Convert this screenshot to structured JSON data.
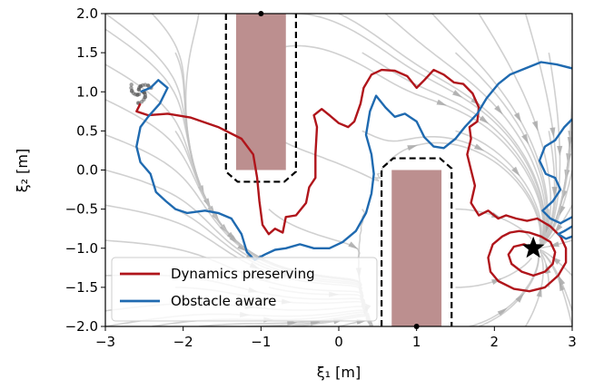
{
  "chart_data": {
    "type": "line",
    "xlabel": "ξ₁ [m]",
    "ylabel": "ξ₂ [m]",
    "xlim": [
      -3,
      3
    ],
    "ylim": [
      -2,
      2
    ],
    "xticks": [
      -3,
      -2,
      -1,
      0,
      1,
      2,
      3
    ],
    "xtick_labels": [
      "−3",
      "−2",
      "−1",
      "0",
      "1",
      "2",
      "3"
    ],
    "yticks": [
      -2.0,
      -1.5,
      -1.0,
      -0.5,
      0.0,
      0.5,
      1.0,
      1.5,
      2.0
    ],
    "ytick_labels": [
      "−2.0",
      "−1.5",
      "−1.0",
      "−0.5",
      "0.0",
      "0.5",
      "1.0",
      "1.5",
      "2.0"
    ],
    "grid": false,
    "legend_position": "lower-left",
    "obstacles": [
      {
        "x": [
          -1.32,
          -0.68
        ],
        "y": [
          0.0,
          2.0
        ],
        "color": "#bc8f8f"
      },
      {
        "x": [
          0.68,
          1.32
        ],
        "y": [
          -2.0,
          0.0
        ],
        "color": "#bc8f8f"
      }
    ],
    "safety_margins": [
      {
        "points": [
          [
            -1.45,
            2.0
          ],
          [
            -1.45,
            -0.02
          ],
          [
            -1.3,
            -0.15
          ],
          [
            -0.7,
            -0.15
          ],
          [
            -0.55,
            -0.02
          ],
          [
            -0.55,
            2.0
          ]
        ]
      },
      {
        "points": [
          [
            0.55,
            -2.0
          ],
          [
            0.55,
            0.02
          ],
          [
            0.7,
            0.15
          ],
          [
            1.3,
            0.15
          ],
          [
            1.45,
            0.02
          ],
          [
            1.45,
            -2.0
          ]
        ]
      }
    ],
    "attractor": {
      "x": 2.5,
      "y": -1.0
    },
    "start_region": {
      "x": -2.55,
      "y": 1.0
    },
    "series": [
      {
        "name": "Dynamics preserving",
        "color": "#b0151b",
        "points": [
          [
            -2.55,
            0.85
          ],
          [
            -2.6,
            0.75
          ],
          [
            -2.45,
            0.7
          ],
          [
            -2.2,
            0.72
          ],
          [
            -1.9,
            0.67
          ],
          [
            -1.55,
            0.55
          ],
          [
            -1.25,
            0.4
          ],
          [
            -1.1,
            0.2
          ],
          [
            -1.05,
            -0.1
          ],
          [
            -1.02,
            -0.4
          ],
          [
            -0.98,
            -0.7
          ],
          [
            -0.9,
            -0.82
          ],
          [
            -0.82,
            -0.75
          ],
          [
            -0.72,
            -0.8
          ],
          [
            -0.68,
            -0.6
          ],
          [
            -0.55,
            -0.58
          ],
          [
            -0.42,
            -0.42
          ],
          [
            -0.38,
            -0.22
          ],
          [
            -0.3,
            -0.1
          ],
          [
            -0.3,
            0.2
          ],
          [
            -0.28,
            0.55
          ],
          [
            -0.32,
            0.7
          ],
          [
            -0.22,
            0.78
          ],
          [
            -0.12,
            0.7
          ],
          [
            0.0,
            0.6
          ],
          [
            0.12,
            0.55
          ],
          [
            0.2,
            0.62
          ],
          [
            0.28,
            0.85
          ],
          [
            0.32,
            1.05
          ],
          [
            0.42,
            1.22
          ],
          [
            0.55,
            1.28
          ],
          [
            0.72,
            1.27
          ],
          [
            0.88,
            1.2
          ],
          [
            1.0,
            1.05
          ],
          [
            1.1,
            1.15
          ],
          [
            1.22,
            1.28
          ],
          [
            1.35,
            1.22
          ],
          [
            1.48,
            1.12
          ],
          [
            1.6,
            1.1
          ],
          [
            1.72,
            0.98
          ],
          [
            1.8,
            0.8
          ],
          [
            1.78,
            0.62
          ],
          [
            1.68,
            0.55
          ],
          [
            1.7,
            0.4
          ],
          [
            1.65,
            0.2
          ],
          [
            1.7,
            0.0
          ],
          [
            1.75,
            -0.2
          ],
          [
            1.7,
            -0.42
          ],
          [
            1.8,
            -0.58
          ],
          [
            1.92,
            -0.52
          ],
          [
            2.05,
            -0.62
          ],
          [
            2.15,
            -0.58
          ],
          [
            2.28,
            -0.62
          ],
          [
            2.42,
            -0.65
          ],
          [
            2.55,
            -0.62
          ],
          [
            2.72,
            -0.72
          ],
          [
            2.85,
            -0.85
          ],
          [
            2.92,
            -1.0
          ],
          [
            2.92,
            -1.18
          ],
          [
            2.82,
            -1.35
          ],
          [
            2.65,
            -1.5
          ],
          [
            2.45,
            -1.55
          ],
          [
            2.25,
            -1.52
          ],
          [
            2.05,
            -1.42
          ],
          [
            1.95,
            -1.3
          ],
          [
            1.92,
            -1.12
          ],
          [
            1.98,
            -0.95
          ],
          [
            2.1,
            -0.85
          ],
          [
            2.2,
            -0.8
          ],
          [
            2.32,
            -0.78
          ],
          [
            2.45,
            -0.8
          ],
          [
            2.6,
            -0.85
          ],
          [
            2.72,
            -0.92
          ],
          [
            2.78,
            -1.05
          ],
          [
            2.75,
            -1.2
          ],
          [
            2.65,
            -1.3
          ],
          [
            2.5,
            -1.35
          ],
          [
            2.35,
            -1.3
          ],
          [
            2.22,
            -1.2
          ],
          [
            2.18,
            -1.08
          ],
          [
            2.25,
            -0.98
          ],
          [
            2.38,
            -0.95
          ],
          [
            2.5,
            -1.0
          ]
        ]
      },
      {
        "name": "Obstacle aware",
        "color": "#1f6ab0",
        "points": [
          [
            -2.55,
            1.0
          ],
          [
            -2.42,
            1.05
          ],
          [
            -2.32,
            1.15
          ],
          [
            -2.2,
            1.05
          ],
          [
            -2.3,
            0.85
          ],
          [
            -2.45,
            0.68
          ],
          [
            -2.55,
            0.55
          ],
          [
            -2.6,
            0.3
          ],
          [
            -2.55,
            0.1
          ],
          [
            -2.42,
            -0.05
          ],
          [
            -2.35,
            -0.28
          ],
          [
            -2.22,
            -0.4
          ],
          [
            -2.1,
            -0.5
          ],
          [
            -1.95,
            -0.55
          ],
          [
            -1.72,
            -0.52
          ],
          [
            -1.55,
            -0.55
          ],
          [
            -1.38,
            -0.62
          ],
          [
            -1.25,
            -0.82
          ],
          [
            -1.18,
            -1.05
          ],
          [
            -1.08,
            -1.15
          ],
          [
            -0.95,
            -1.08
          ],
          [
            -0.82,
            -1.02
          ],
          [
            -0.68,
            -1.0
          ],
          [
            -0.5,
            -0.95
          ],
          [
            -0.32,
            -1.0
          ],
          [
            -0.12,
            -1.0
          ],
          [
            0.05,
            -0.92
          ],
          [
            0.22,
            -0.78
          ],
          [
            0.35,
            -0.55
          ],
          [
            0.42,
            -0.3
          ],
          [
            0.45,
            -0.05
          ],
          [
            0.42,
            0.2
          ],
          [
            0.35,
            0.45
          ],
          [
            0.4,
            0.75
          ],
          [
            0.48,
            0.95
          ],
          [
            0.6,
            0.8
          ],
          [
            0.72,
            0.68
          ],
          [
            0.85,
            0.72
          ],
          [
            1.0,
            0.62
          ],
          [
            1.1,
            0.42
          ],
          [
            1.22,
            0.3
          ],
          [
            1.35,
            0.28
          ],
          [
            1.5,
            0.4
          ],
          [
            1.62,
            0.55
          ],
          [
            1.78,
            0.72
          ],
          [
            1.9,
            0.92
          ],
          [
            2.05,
            1.1
          ],
          [
            2.2,
            1.22
          ],
          [
            2.4,
            1.3
          ],
          [
            2.6,
            1.38
          ],
          [
            2.8,
            1.35
          ],
          [
            3.0,
            1.3
          ]
        ]
      },
      {
        "name": "",
        "color": "#1f6ab0",
        "points": [
          [
            3.0,
            0.65
          ],
          [
            2.9,
            0.55
          ],
          [
            2.78,
            0.38
          ],
          [
            2.65,
            0.3
          ],
          [
            2.58,
            0.12
          ],
          [
            2.66,
            -0.05
          ],
          [
            2.78,
            -0.1
          ],
          [
            2.85,
            -0.25
          ],
          [
            2.75,
            -0.4
          ],
          [
            2.62,
            -0.52
          ],
          [
            2.72,
            -0.62
          ],
          [
            2.85,
            -0.68
          ],
          [
            3.0,
            -0.6
          ]
        ]
      },
      {
        "name": "",
        "color": "#1f6ab0",
        "points": [
          [
            3.0,
            -0.72
          ],
          [
            2.9,
            -0.78
          ],
          [
            2.82,
            -0.82
          ],
          [
            2.92,
            -0.88
          ],
          [
            3.0,
            -0.85
          ]
        ]
      }
    ],
    "stream_color": "#c0c0c0"
  },
  "legend": {
    "entries": [
      {
        "label": "Dynamics preserving",
        "color": "#b0151b"
      },
      {
        "label": "Obstacle aware",
        "color": "#1f6ab0"
      }
    ]
  }
}
